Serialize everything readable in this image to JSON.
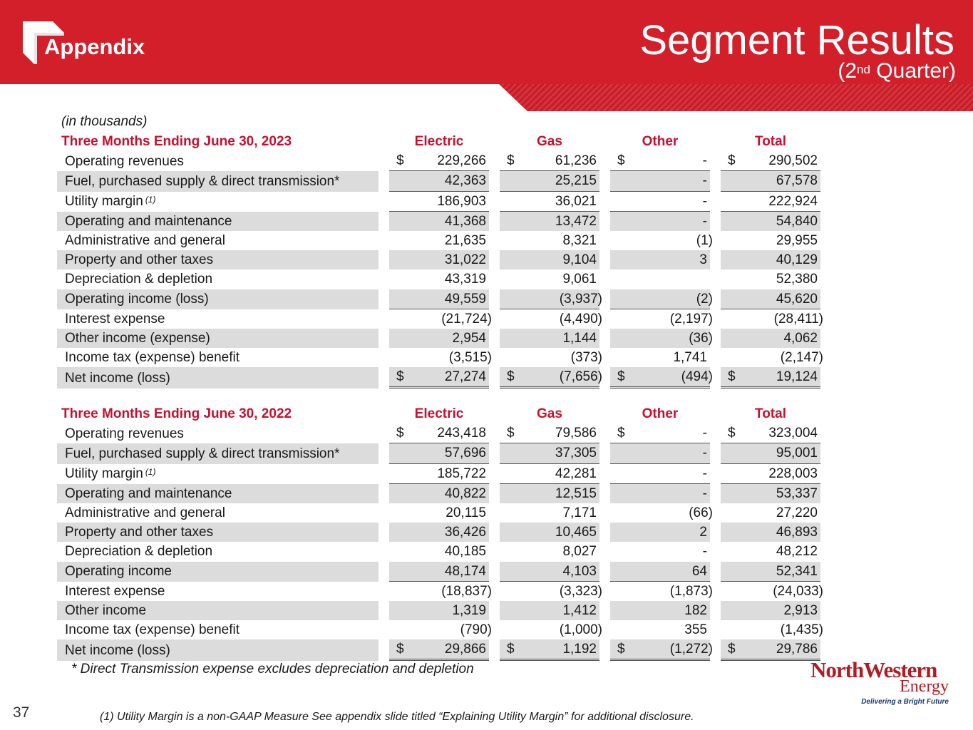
{
  "header": {
    "section": "Appendix",
    "title": "Segment Results",
    "subtitle_prefix": "(2",
    "subtitle_sup": "nd",
    "subtitle_suffix": " Quarter)"
  },
  "units": "(in thousands)",
  "tables": [
    {
      "title": "Three Months Ending June 30, 2023",
      "columns": [
        "Electric",
        "Gas",
        "Other",
        "Total"
      ],
      "rows": [
        {
          "label": "Operating revenues",
          "values": [
            "229,266",
            "61,236",
            "-",
            "290,502"
          ],
          "dollar": true
        },
        {
          "label": "Fuel, purchased supply & direct transmission*",
          "values": [
            "42,363",
            "25,215",
            "-",
            "67,578"
          ]
        },
        {
          "label": "Utility margin",
          "sup": "(1)",
          "values": [
            "186,903",
            "36,021",
            "-",
            "222,924"
          ]
        },
        {
          "label": "Operating and maintenance",
          "values": [
            "41,368",
            "13,472",
            "-",
            "54,840"
          ]
        },
        {
          "label": "Administrative and general",
          "values": [
            "21,635",
            "8,321",
            "(1)",
            "29,955"
          ]
        },
        {
          "label": "Property and other taxes",
          "values": [
            "31,022",
            "9,104",
            "3",
            "40,129"
          ]
        },
        {
          "label": "Depreciation & depletion",
          "values": [
            "43,319",
            "9,061",
            "",
            "52,380"
          ]
        },
        {
          "label": "Operating income (loss)",
          "values": [
            "49,559",
            "(3,937)",
            "(2)",
            "45,620"
          ]
        },
        {
          "label": "Interest expense",
          "values": [
            "(21,724)",
            "(4,490)",
            "(2,197)",
            "(28,411)"
          ]
        },
        {
          "label": "Other income (expense)",
          "values": [
            "2,954",
            "1,144",
            "(36)",
            "4,062"
          ]
        },
        {
          "label": "Income tax (expense) benefit",
          "values": [
            "(3,515)",
            "(373)",
            "1,741",
            "(2,147)"
          ]
        },
        {
          "label": "Net income (loss)",
          "values": [
            "27,274",
            "(7,656)",
            "(494)",
            "19,124"
          ],
          "dollar": true
        }
      ]
    },
    {
      "title": "Three Months Ending June 30, 2022",
      "columns": [
        "Electric",
        "Gas",
        "Other",
        "Total"
      ],
      "rows": [
        {
          "label": "Operating revenues",
          "values": [
            "243,418",
            "79,586",
            "-",
            "323,004"
          ],
          "dollar": true
        },
        {
          "label": "Fuel, purchased supply & direct transmission*",
          "values": [
            "57,696",
            "37,305",
            "-",
            "95,001"
          ]
        },
        {
          "label": "Utility margin",
          "sup": "(1)",
          "values": [
            "185,722",
            "42,281",
            "-",
            "228,003"
          ]
        },
        {
          "label": "Operating and maintenance",
          "values": [
            "40,822",
            "12,515",
            "-",
            "53,337"
          ]
        },
        {
          "label": "Administrative and general",
          "values": [
            "20,115",
            "7,171",
            "(66)",
            "27,220"
          ]
        },
        {
          "label": "Property and other taxes",
          "values": [
            "36,426",
            "10,465",
            "2",
            "46,893"
          ]
        },
        {
          "label": "Depreciation & depletion",
          "values": [
            "40,185",
            "8,027",
            "-",
            "48,212"
          ]
        },
        {
          "label": "Operating income",
          "values": [
            "48,174",
            "4,103",
            "64",
            "52,341"
          ]
        },
        {
          "label": "Interest expense",
          "values": [
            "(18,837)",
            "(3,323)",
            "(1,873)",
            "(24,033)"
          ]
        },
        {
          "label": "Other income",
          "values": [
            "1,319",
            "1,412",
            "182",
            "2,913"
          ]
        },
        {
          "label": "Income tax (expense) benefit",
          "values": [
            "(790)",
            "(1,000)",
            "355",
            "(1,435)"
          ]
        },
        {
          "label": "Net income (loss)",
          "values": [
            "29,866",
            "1,192",
            "(1,272)",
            "29,786"
          ],
          "dollar": true
        }
      ]
    }
  ],
  "currency_symbol": "$",
  "note": "* Direct Transmission expense excludes depreciation and depletion",
  "page_number": "37",
  "footnote": "(1) Utility Margin is a non-GAAP Measure  See appendix slide titled “Explaining Utility Margin” for additional disclosure.",
  "logo": {
    "name": "NorthWestern",
    "energy": "Energy",
    "tagline": "Delivering a Bright Future"
  },
  "colors": {
    "brand_red": "#d31f2a",
    "header_text_red": "#c8102e",
    "row_shade": "#dcdcdc"
  }
}
